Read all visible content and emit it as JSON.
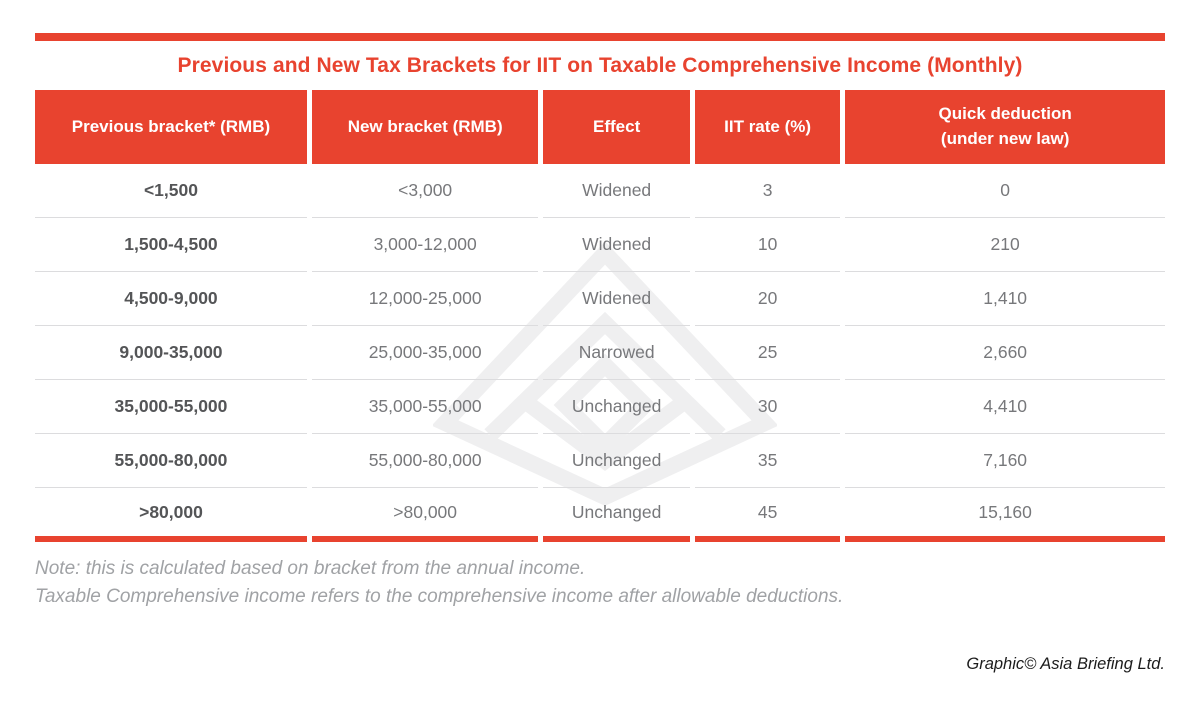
{
  "title": "Previous and New Tax Brackets for IIT on Taxable Comprehensive Income (Monthly)",
  "notes": [
    "Note: this is calculated based on bracket from the annual income.",
    "Taxable Comprehensive income refers to the comprehensive income after allowable deductions."
  ],
  "credit": "Graphic© Asia Briefing Ltd.",
  "colors": {
    "accent_red": "#e8432f",
    "header_text": "#ffffff",
    "primary_column_text": "#545557",
    "body_text": "#77787b",
    "row_separator": "#dcdcde",
    "note_text": "#a0a2a5",
    "watermark": "#efeff0"
  },
  "watermark_icon": "asia-briefing-logo",
  "chart_data": {
    "type": "table",
    "title": "Previous and New Tax Brackets for IIT on Taxable Comprehensive Income (Monthly)",
    "columns": [
      "Previous bracket* (RMB)",
      "New bracket (RMB)",
      "Effect",
      "IIT rate (%)",
      "Quick deduction\n(under new law)"
    ],
    "rows": [
      [
        "<1,500",
        "<3,000",
        "Widened",
        "3",
        "0"
      ],
      [
        "1,500-4,500",
        "3,000-12,000",
        "Widened",
        "10",
        "210"
      ],
      [
        "4,500-9,000",
        "12,000-25,000",
        "Widened",
        "20",
        "1,410"
      ],
      [
        "9,000-35,000",
        "25,000-35,000",
        "Narrowed",
        "25",
        "2,660"
      ],
      [
        "35,000-55,000",
        "35,000-55,000",
        "Unchanged",
        "30",
        "4,410"
      ],
      [
        "55,000-80,000",
        "55,000-80,000",
        "Unchanged",
        "35",
        "7,160"
      ],
      [
        ">80,000",
        ">80,000",
        "Unchanged",
        "45",
        "15,160"
      ]
    ]
  }
}
